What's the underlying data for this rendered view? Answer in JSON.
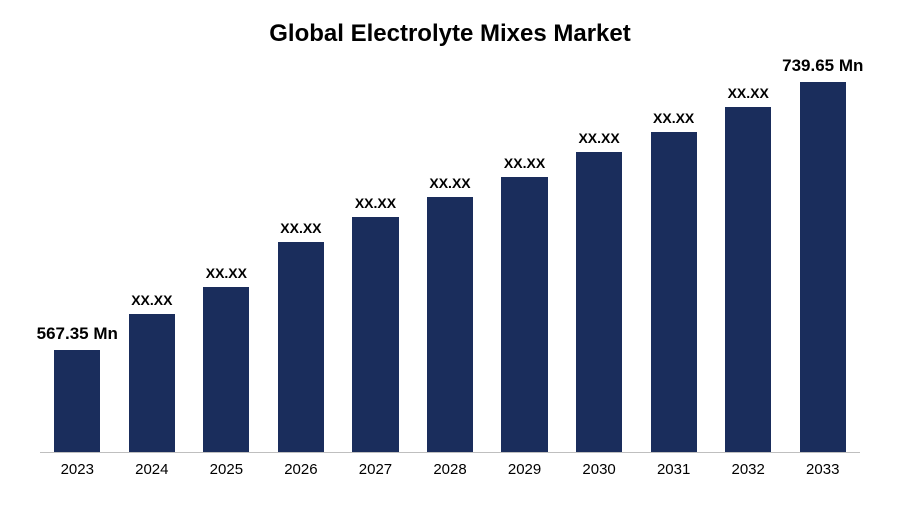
{
  "chart": {
    "type": "bar",
    "title": "Global Electrolyte Mixes Market",
    "title_fontsize": 24,
    "title_weight": 700,
    "title_color": "#000000",
    "background_color": "#ffffff",
    "axis_line_color": "#bfbfbf",
    "bar_color": "#1a2d5c",
    "bar_width_pct": 62,
    "label_color": "#000000",
    "label_fontsize_small": 14,
    "label_fontsize_large": 17,
    "label_weight": 700,
    "xaxis_fontsize": 15,
    "xaxis_color": "#000000",
    "max_value": 800,
    "categories": [
      "2023",
      "2024",
      "2025",
      "2026",
      "2027",
      "2028",
      "2029",
      "2030",
      "2031",
      "2032",
      "2033"
    ],
    "bars": [
      {
        "value": 102,
        "label": "567.35 Mn",
        "label_size": "large"
      },
      {
        "value": 138,
        "label": "XX.XX",
        "label_size": "small"
      },
      {
        "value": 165,
        "label": "XX.XX",
        "label_size": "small"
      },
      {
        "value": 210,
        "label": "XX.XX",
        "label_size": "small"
      },
      {
        "value": 235,
        "label": "XX.XX",
        "label_size": "small"
      },
      {
        "value": 255,
        "label": "XX.XX",
        "label_size": "small"
      },
      {
        "value": 275,
        "label": "XX.XX",
        "label_size": "small"
      },
      {
        "value": 300,
        "label": "XX.XX",
        "label_size": "small"
      },
      {
        "value": 320,
        "label": "XX.XX",
        "label_size": "small"
      },
      {
        "value": 345,
        "label": "XX.XX",
        "label_size": "small"
      },
      {
        "value": 370,
        "label": "739.65 Mn",
        "label_size": "large"
      }
    ]
  }
}
